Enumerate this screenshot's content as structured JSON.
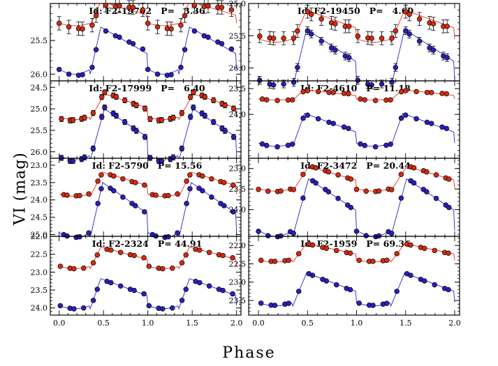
{
  "figure": {
    "ylabel": "VI (mag)",
    "xlabel": "Phase"
  },
  "colors": {
    "V": "#d62a10",
    "I": "#2a1ec0",
    "V_line": "#e8301a",
    "I_line": "#2a22d0"
  },
  "chart_data": [
    {
      "type": "scatter",
      "title": "Id: F2-19702   P=   3.36",
      "id": "F2-19702",
      "period": 3.36,
      "xlim": [
        -0.1,
        2.05
      ],
      "ylim": [
        26.1,
        24.95
      ],
      "yticks": [
        "25.5",
        "26.0"
      ],
      "ytickvals": [
        25.5,
        26.0
      ],
      "xticks": [],
      "V": {
        "mean": 25.1,
        "amp": 0.18,
        "err": 0.1
      },
      "I": {
        "mean": 25.65,
        "amp": 0.35,
        "err": 0.05
      }
    },
    {
      "type": "scatter",
      "title": "Id: F2-19450   P=   4.60",
      "id": "F2-19450",
      "period": 4.6,
      "xlim": [
        -0.1,
        2.05
      ],
      "ylim": [
        26.2,
        25.0
      ],
      "yticks": [
        "25.0",
        "25.5",
        "26.0"
      ],
      "ytickvals": [
        25.0,
        25.5,
        26.0
      ],
      "xticks": [],
      "V": {
        "mean": 25.35,
        "amp": 0.25,
        "err": 0.1
      },
      "I": {
        "mean": 25.85,
        "amp": 0.45,
        "err": 0.06
      }
    },
    {
      "type": "scatter",
      "title": "Id: F2-17999   P=   6.40",
      "id": "F2-17999",
      "period": 6.4,
      "xlim": [
        -0.1,
        2.05
      ],
      "ylim": [
        26.15,
        24.35
      ],
      "yticks": [
        "24.5",
        "25.0",
        "25.5",
        "26.0"
      ],
      "ytickvals": [
        24.5,
        25.0,
        25.5,
        26.0
      ],
      "xticks": [],
      "V": {
        "mean": 24.95,
        "amp": 0.3,
        "err": 0.06
      },
      "I": {
        "mean": 25.6,
        "amp": 0.6,
        "err": 0.06
      }
    },
    {
      "type": "scatter",
      "title": "Id: F2-4610   P= 11.18",
      "id": "F2-4610",
      "period": 11.18,
      "xlim": [
        -0.1,
        2.05
      ],
      "ylim": [
        24.85,
        23.35
      ],
      "yticks": [
        "23.5",
        "24.0"
      ],
      "ytickvals": [
        23.5,
        24.0
      ],
      "xticks": [],
      "V": {
        "mean": 23.62,
        "amp": 0.1,
        "err": 0.03
      },
      "I": {
        "mean": 24.3,
        "amp": 0.32,
        "err": 0.03
      }
    },
    {
      "type": "scatter",
      "title": "Id: F2-5790   P= 15.56",
      "id": "F2-5790",
      "period": 15.56,
      "xlim": [
        -0.1,
        2.05
      ],
      "ylim": [
        25.05,
        22.8
      ],
      "yticks": [
        "23.0",
        "23.5",
        "24.0",
        "24.5",
        "25.0"
      ],
      "ytickvals": [
        23.0,
        23.5,
        24.0,
        24.5,
        25.0
      ],
      "xticks": [],
      "V": {
        "mean": 23.55,
        "amp": 0.35,
        "err": 0.03
      },
      "I": {
        "mean": 24.3,
        "amp": 0.8,
        "err": 0.03
      }
    },
    {
      "type": "scatter",
      "title": "Id: F2-3472   P= 20.44",
      "id": "F2-3472",
      "period": 20.44,
      "xlim": [
        -0.1,
        2.05
      ],
      "ylim": [
        24.65,
        22.75
      ],
      "yticks": [
        "23.0",
        "23.5",
        "24.0"
      ],
      "ytickvals": [
        23.0,
        23.5,
        24.0
      ],
      "xticks": [],
      "V": {
        "mean": 23.25,
        "amp": 0.3,
        "err": 0.03
      },
      "I": {
        "mean": 23.95,
        "amp": 0.7,
        "err": 0.03
      }
    },
    {
      "type": "scatter",
      "title": "Id: F2-2324   P= 44.91",
      "id": "F2-2324",
      "period": 44.91,
      "xlim": [
        -0.1,
        2.05
      ],
      "ylim": [
        24.2,
        22.0
      ],
      "yticks": [
        "22.0",
        "22.5",
        "23.0",
        "23.5",
        "24.0"
      ],
      "ytickvals": [
        22.0,
        22.5,
        23.0,
        23.5,
        24.0
      ],
      "xticks": [
        "0.0",
        "0.5",
        "1.0",
        "1.5",
        "2.0"
      ],
      "xtickvals": [
        0.0,
        0.5,
        1.0,
        1.5,
        2.0
      ],
      "V": {
        "mean": 22.6,
        "amp": 0.3,
        "err": 0.03
      },
      "I": {
        "mean": 23.6,
        "amp": 0.42,
        "err": 0.03
      }
    },
    {
      "type": "scatter",
      "title": "Id: F2-1959   P= 69.36",
      "id": "F2-1959",
      "period": 69.36,
      "xlim": [
        -0.1,
        2.05
      ],
      "ylim": [
        23.9,
        21.75
      ],
      "yticks": [
        "22.0",
        "22.5",
        "23.0",
        "23.5"
      ],
      "ytickvals": [
        22.0,
        22.5,
        23.0,
        23.5
      ],
      "xticks": [
        "0.0",
        "0.5",
        "1.0",
        "1.5",
        "2.0"
      ],
      "xtickvals": [
        0.0,
        0.5,
        1.0,
        1.5,
        2.0
      ],
      "V": {
        "mean": 22.2,
        "amp": 0.25,
        "err": 0.03
      },
      "I": {
        "mean": 23.2,
        "amp": 0.45,
        "err": 0.03
      }
    }
  ]
}
